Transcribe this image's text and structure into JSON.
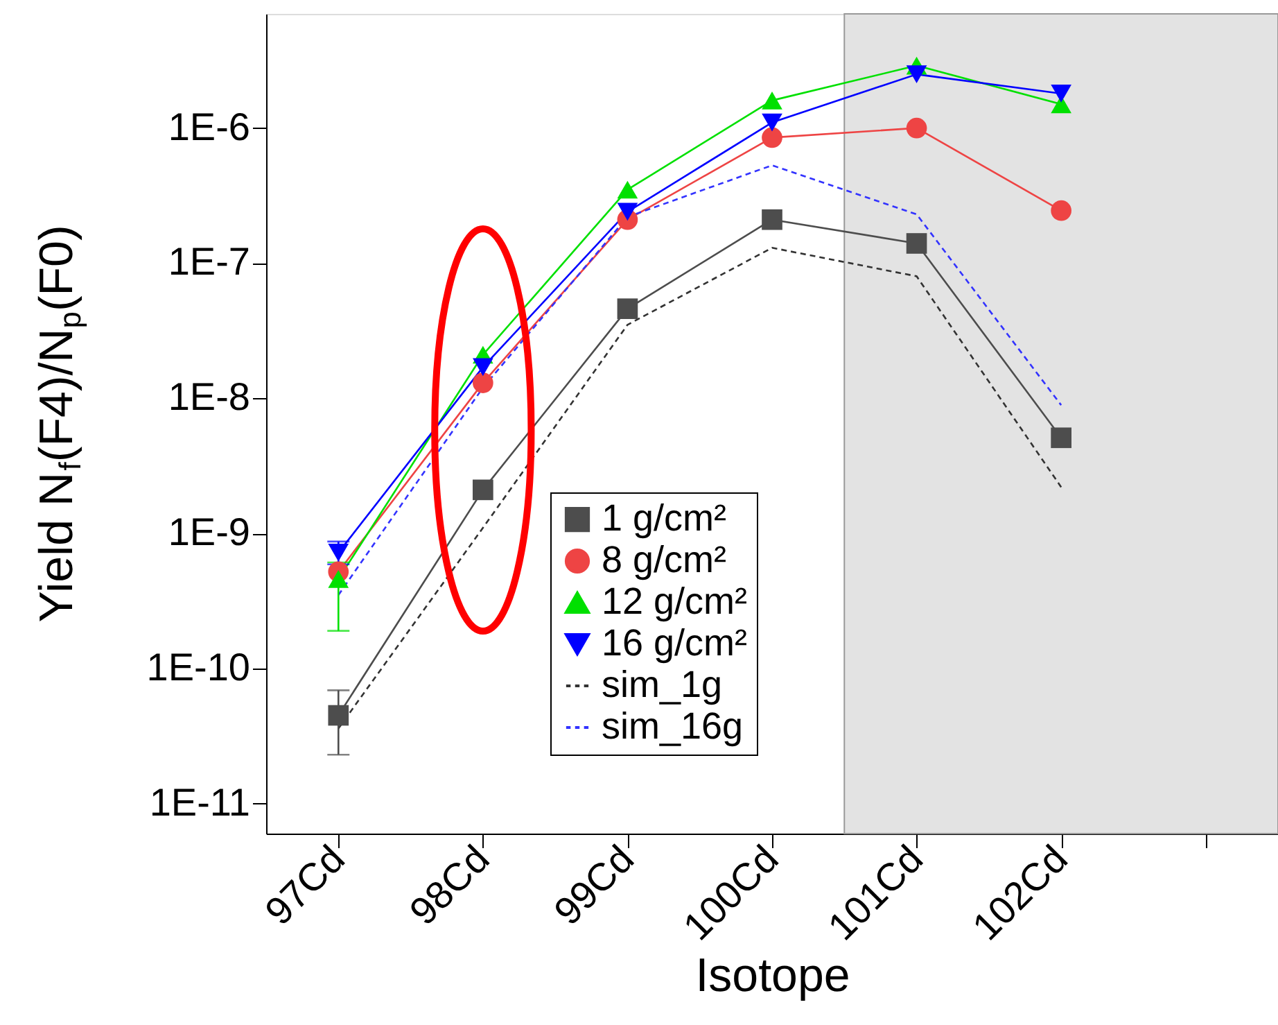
{
  "chart_data": {
    "type": "line",
    "xlabel": "Isotope",
    "ylabel": "Yield N$_{f}$(F4)/N$_{p}$(F0)",
    "categories": [
      "97Cd",
      "98Cd",
      "99Cd",
      "100Cd",
      "101Cd",
      "102Cd",
      null
    ],
    "log": "y",
    "ylim": [
      6e-12,
      7e-06
    ],
    "yticks": [
      {
        "value": 1e-11,
        "label": "1E-11"
      },
      {
        "value": 1e-10,
        "label": "1E-10"
      },
      {
        "value": 1e-09,
        "label": "1E-9"
      },
      {
        "value": 1e-08,
        "label": "1E-8"
      },
      {
        "value": 1e-07,
        "label": "1E-7"
      },
      {
        "value": 1e-06,
        "label": "1E-6"
      }
    ],
    "grid": false,
    "legend": "bottom",
    "series": [
      {
        "name": "1 g/cm²",
        "color": "#4d4d4d",
        "marker": "square",
        "line_style": "solid",
        "values": [
          4.5e-11,
          2.1e-09,
          4.6e-08,
          2.1e-07,
          1.4e-07,
          5.1e-09,
          null
        ],
        "errors": [
          [
            2.3e-11,
            6.9e-11
          ],
          null,
          null,
          null,
          null,
          null,
          null
        ]
      },
      {
        "name": "8 g/cm²",
        "color": "#ee4444",
        "marker": "circle",
        "line_style": "solid",
        "values": [
          5.2e-10,
          1.3e-08,
          2.1e-07,
          8.5e-07,
          1e-06,
          2.45e-07,
          null
        ]
      },
      {
        "name": "12 g/cm²",
        "color": "#00e000",
        "marker": "triangle",
        "line_style": "solid",
        "values": [
          4.6e-10,
          2.1e-08,
          3.5e-07,
          1.6e-06,
          2.9e-06,
          1.5e-06,
          null
        ],
        "errors": [
          [
            1.9e-10,
            6.1e-10
          ],
          null,
          null,
          null,
          null,
          null,
          null
        ]
      },
      {
        "name": "16 g/cm²",
        "color": "#0000ff",
        "marker": "triangle-down",
        "line_style": "solid",
        "values": [
          7.2e-10,
          1.7e-08,
          2.4e-07,
          1.1e-06,
          2.5e-06,
          1.8e-06,
          null
        ],
        "errors": [
          [
            5.9e-10,
            8.7e-10
          ],
          null,
          null,
          null,
          null,
          null,
          null
        ]
      },
      {
        "name": "sim_1g",
        "color": "#333333",
        "marker": "none",
        "line_style": "dashed",
        "values": [
          3.6e-11,
          1.1e-09,
          3.5e-08,
          1.3e-07,
          8e-08,
          2.2e-09,
          null
        ]
      },
      {
        "name": "sim_16g",
        "color": "#3333ff",
        "marker": "none",
        "line_style": "dashed",
        "values": [
          3.5e-10,
          1.2e-08,
          2.2e-07,
          5.3e-07,
          2.3e-07,
          8.9e-09,
          null
        ]
      }
    ]
  }
}
